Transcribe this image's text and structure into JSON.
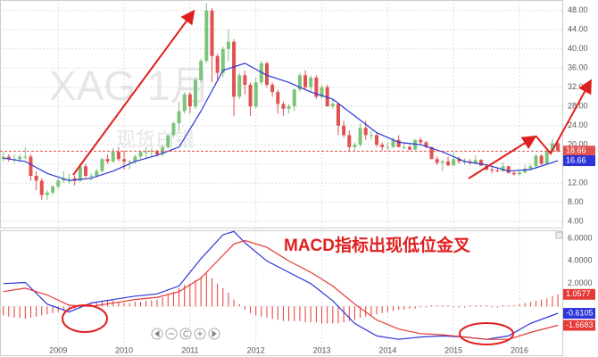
{
  "chart_data": [
    {
      "type": "candlestick",
      "annotations": [
        "XAG 1月",
        "现货白银"
      ],
      "up_color": "#7cc47c",
      "down_color": "#e0524f",
      "ohlc": [
        [
          17.0,
          18.5,
          16.5,
          17.5
        ],
        [
          17.5,
          18.0,
          16.5,
          17.0
        ],
        [
          17.0,
          18.0,
          16.2,
          17.0
        ],
        [
          17.0,
          18.0,
          16.3,
          17.5
        ],
        [
          17.5,
          19.5,
          17.0,
          17.5
        ],
        [
          17.5,
          18.0,
          12.5,
          13.5
        ],
        [
          13.5,
          14.5,
          10.5,
          12.5
        ],
        [
          12.5,
          13.0,
          8.5,
          9.5
        ],
        [
          9.5,
          10.5,
          8.5,
          10.0
        ],
        [
          10.0,
          11.5,
          9.5,
          11.3
        ],
        [
          11.3,
          13.0,
          10.8,
          12.5
        ],
        [
          12.5,
          14.5,
          12.0,
          13.0
        ],
        [
          13.0,
          14.0,
          11.8,
          13.0
        ],
        [
          13.0,
          13.5,
          11.5,
          12.5
        ],
        [
          12.5,
          15.8,
          12.2,
          15.5
        ],
        [
          15.5,
          16.0,
          13.2,
          13.5
        ],
        [
          13.5,
          14.0,
          12.5,
          13.5
        ],
        [
          13.5,
          15.0,
          13.2,
          14.5
        ],
        [
          14.5,
          17.3,
          14.2,
          17.0
        ],
        [
          17.0,
          18.0,
          16.0,
          16.5
        ],
        [
          16.5,
          19.3,
          16.2,
          18.5
        ],
        [
          18.5,
          19.5,
          16.5,
          17.0
        ],
        [
          17.0,
          18.8,
          14.8,
          16.5
        ],
        [
          16.5,
          16.8,
          14.8,
          16.5
        ],
        [
          16.5,
          18.0,
          16.0,
          17.5
        ],
        [
          17.5,
          18.8,
          17.0,
          18.5
        ],
        [
          18.5,
          19.6,
          17.0,
          18.5
        ],
        [
          18.5,
          19.3,
          17.5,
          18.7
        ],
        [
          18.7,
          19.0,
          17.5,
          18.0
        ],
        [
          18.0,
          19.8,
          17.5,
          19.5
        ],
        [
          19.5,
          22.0,
          19.2,
          22.0
        ],
        [
          22.0,
          24.8,
          21.5,
          24.5
        ],
        [
          24.5,
          29.0,
          22.8,
          27.0
        ],
        [
          27.0,
          31.0,
          26.5,
          30.5
        ],
        [
          30.5,
          31.0,
          26.5,
          28.0
        ],
        [
          28.0,
          34.0,
          27.5,
          33.5
        ],
        [
          33.5,
          38.0,
          33.0,
          37.5
        ],
        [
          37.5,
          49.5,
          37.0,
          48.0
        ],
        [
          48.0,
          48.5,
          33.0,
          38.5
        ],
        [
          38.5,
          39.0,
          33.5,
          35.0
        ],
        [
          35.0,
          40.5,
          34.0,
          40.0
        ],
        [
          40.0,
          44.0,
          37.5,
          41.5
        ],
        [
          41.5,
          42.0,
          26.0,
          30.0
        ],
        [
          30.0,
          35.0,
          29.5,
          34.5
        ],
        [
          34.5,
          35.5,
          30.5,
          32.5
        ],
        [
          32.5,
          33.0,
          26.0,
          28.0
        ],
        [
          28.0,
          34.0,
          27.5,
          33.0
        ],
        [
          33.0,
          37.5,
          32.5,
          37.0
        ],
        [
          37.0,
          37.3,
          32.0,
          32.5
        ],
        [
          32.5,
          33.0,
          30.0,
          31.0
        ],
        [
          31.0,
          31.5,
          26.5,
          28.5
        ],
        [
          28.5,
          29.0,
          26.0,
          27.5
        ],
        [
          27.5,
          28.5,
          26.5,
          28.0
        ],
        [
          28.0,
          31.8,
          27.0,
          31.5
        ],
        [
          31.5,
          35.0,
          31.0,
          34.5
        ],
        [
          34.5,
          35.5,
          31.5,
          32.0
        ],
        [
          32.0,
          34.5,
          31.0,
          34.0
        ],
        [
          34.0,
          34.5,
          29.5,
          30.0
        ],
        [
          30.0,
          32.5,
          29.5,
          32.0
        ],
        [
          32.0,
          32.5,
          28.0,
          28.0
        ],
        [
          28.0,
          29.5,
          27.5,
          28.5
        ],
        [
          28.5,
          28.8,
          22.0,
          24.0
        ],
        [
          24.0,
          25.0,
          21.5,
          22.0
        ],
        [
          22.0,
          23.0,
          18.5,
          19.5
        ],
        [
          19.5,
          20.5,
          18.7,
          20.0
        ],
        [
          20.0,
          24.5,
          19.5,
          23.5
        ],
        [
          23.5,
          25.0,
          21.0,
          22.0
        ],
        [
          22.0,
          23.0,
          21.0,
          22.0
        ],
        [
          22.0,
          22.5,
          19.5,
          20.0
        ],
        [
          20.0,
          20.5,
          18.8,
          19.5
        ],
        [
          19.5,
          20.5,
          18.8,
          19.5
        ],
        [
          19.5,
          21.5,
          19.3,
          21.0
        ],
        [
          21.0,
          22.0,
          19.5,
          19.5
        ],
        [
          19.5,
          20.5,
          19.0,
          19.5
        ],
        [
          19.5,
          20.0,
          18.8,
          19.0
        ],
        [
          19.0,
          21.2,
          18.8,
          21.0
        ],
        [
          21.0,
          21.5,
          20.0,
          20.5
        ],
        [
          20.5,
          20.8,
          19.3,
          19.5
        ],
        [
          19.5,
          19.6,
          17.0,
          17.0
        ],
        [
          17.0,
          17.5,
          15.8,
          16.2
        ],
        [
          16.2,
          16.8,
          14.5,
          16.5
        ],
        [
          16.5,
          17.5,
          15.5,
          15.7
        ],
        [
          15.7,
          18.5,
          15.5,
          17.0
        ],
        [
          17.0,
          17.5,
          16.0,
          16.5
        ],
        [
          16.5,
          17.2,
          15.8,
          16.5
        ],
        [
          16.5,
          17.0,
          15.8,
          16.2
        ],
        [
          16.2,
          17.8,
          15.8,
          16.8
        ],
        [
          16.8,
          17.0,
          15.6,
          15.6
        ],
        [
          15.6,
          15.8,
          14.6,
          14.8
        ],
        [
          14.8,
          15.5,
          14.0,
          14.6
        ],
        [
          14.6,
          15.3,
          14.3,
          14.5
        ],
        [
          14.5,
          16.3,
          14.3,
          15.5
        ],
        [
          15.5,
          15.6,
          14.0,
          14.1
        ],
        [
          14.1,
          14.4,
          13.6,
          13.8
        ],
        [
          13.8,
          14.5,
          13.6,
          14.2
        ],
        [
          14.2,
          15.8,
          14.0,
          15.0
        ],
        [
          15.0,
          16.0,
          14.8,
          15.5
        ],
        [
          15.5,
          18.0,
          15.0,
          17.7
        ],
        [
          17.7,
          18.0,
          15.8,
          16.0
        ],
        [
          16.0,
          18.8,
          16.0,
          18.7
        ],
        [
          18.7,
          21.2,
          18.5,
          20.3
        ],
        [
          20.3,
          20.8,
          18.4,
          18.66
        ]
      ],
      "ma": {
        "color": "#2c35d8",
        "x": [
          0,
          4,
          8,
          12,
          16,
          20,
          24,
          28,
          32,
          36,
          40,
          44,
          48,
          52,
          56,
          60,
          64,
          68,
          72,
          76,
          80,
          84,
          88,
          92,
          96,
          101
        ],
        "values": [
          17.2,
          16.5,
          14,
          12.5,
          13,
          14.5,
          16.5,
          17.8,
          19.5,
          27,
          35.5,
          37,
          34.5,
          33,
          31,
          29.5,
          26,
          22.5,
          20.5,
          20,
          18.5,
          16.5,
          15.8,
          14.5,
          14.8,
          16.66
        ]
      },
      "xlim": [
        -0.6,
        101.8
      ],
      "ylim": [
        2.7,
        50.2
      ],
      "yticks": [
        {
          "value": 4,
          "label": "4.00"
        },
        {
          "value": 8,
          "label": "8.00"
        },
        {
          "value": 12,
          "label": "12.00"
        },
        {
          "value": 16,
          "label": "16.00"
        },
        {
          "value": 20,
          "label": "20.00"
        },
        {
          "value": 24,
          "label": "24.00"
        },
        {
          "value": 28,
          "label": "28.00"
        },
        {
          "value": 32,
          "label": "32.00"
        },
        {
          "value": 36,
          "label": "36.00"
        },
        {
          "value": 40,
          "label": "40.00"
        },
        {
          "value": 44,
          "label": "44.00"
        },
        {
          "value": 48,
          "label": "48.00"
        }
      ],
      "grid": true
    },
    {
      "type": "macd",
      "annotation": "MACD指标出现低位金叉",
      "series": [
        {
          "color": "#2c35d8",
          "x": [
            0,
            4,
            8,
            12,
            16,
            20,
            24,
            28,
            32,
            36,
            40,
            42,
            44,
            48,
            52,
            56,
            60,
            64,
            68,
            72,
            76,
            80,
            84,
            88,
            92,
            96,
            101
          ],
          "values": [
            2.0,
            2.1,
            0.2,
            -0.5,
            0.3,
            0.6,
            0.9,
            1.1,
            1.8,
            4.2,
            6.3,
            6.6,
            5.6,
            4.0,
            3.0,
            2.0,
            0.5,
            -1.5,
            -2.6,
            -2.9,
            -2.7,
            -2.6,
            -2.7,
            -2.9,
            -2.6,
            -1.5,
            -0.6105
          ]
        },
        {
          "color": "#e53935",
          "x": [
            0,
            4,
            8,
            12,
            16,
            20,
            24,
            28,
            32,
            36,
            40,
            42,
            44,
            48,
            52,
            56,
            60,
            64,
            68,
            72,
            76,
            80,
            84,
            88,
            92,
            96,
            101
          ],
          "values": [
            1.3,
            1.6,
            1.0,
            0.1,
            0.0,
            0.3,
            0.6,
            0.8,
            1.3,
            2.5,
            4.5,
            5.5,
            5.8,
            5.2,
            4.0,
            3.0,
            1.8,
            0.2,
            -1.2,
            -2.0,
            -2.4,
            -2.5,
            -2.7,
            -2.9,
            -2.9,
            -2.3,
            -1.6683
          ]
        }
      ],
      "histogram": {
        "up_color": "#e53935",
        "down_color": "#e53935",
        "values": [
          -0.8,
          -0.9,
          -1.0,
          -1.0,
          -1.1,
          -1.0,
          -0.9,
          -0.8,
          -0.7,
          -0.6,
          -0.5,
          -0.4,
          -0.3,
          -0.2,
          -0.1,
          0.1,
          0.2,
          0.3,
          0.4,
          0.5,
          0.5,
          0.4,
          0.3,
          0.3,
          0.4,
          0.4,
          0.5,
          0.5,
          0.6,
          0.8,
          1.0,
          1.3,
          1.6,
          1.9,
          2.0,
          2.3,
          2.6,
          2.9,
          2.5,
          2.0,
          1.6,
          1.2,
          0.6,
          0.2,
          -0.3,
          -0.6,
          -0.8,
          -0.9,
          -1.0,
          -1.1,
          -1.2,
          -1.3,
          -1.3,
          -1.3,
          -1.3,
          -1.4,
          -1.4,
          -1.4,
          -1.5,
          -1.5,
          -1.5,
          -1.5,
          -1.4,
          -1.3,
          -1.2,
          -1.0,
          -0.9,
          -0.8,
          -0.7,
          -0.6,
          -0.5,
          -0.4,
          -0.3,
          -0.3,
          -0.2,
          -0.2,
          -0.1,
          -0.1,
          0.1,
          0.1,
          0.1,
          0.1,
          -0.1,
          -0.1,
          -0.1,
          0.1,
          0.1,
          0.1,
          0.1,
          -0.1,
          -0.1,
          0.1,
          0.1,
          0.1,
          0.2,
          0.3,
          0.4,
          0.5,
          0.6,
          0.7,
          0.9,
          1.0577
        ]
      },
      "xlim": [
        -0.6,
        101.8
      ],
      "ylim": [
        -4.3,
        6.7
      ],
      "yticks": [
        {
          "value": 6,
          "label": "6.0000"
        },
        {
          "value": 4,
          "label": "4.0000"
        },
        {
          "value": 2,
          "label": "2.0000"
        }
      ],
      "xticks": [
        {
          "value": 10,
          "label": "2009"
        },
        {
          "value": 22,
          "label": "2010"
        },
        {
          "value": 34,
          "label": "2011"
        },
        {
          "value": 46,
          "label": "2012"
        },
        {
          "value": 58,
          "label": "2013"
        },
        {
          "value": 70,
          "label": "2014"
        },
        {
          "value": 82,
          "label": "2015"
        },
        {
          "value": 94,
          "label": "2016"
        }
      ],
      "grid": true
    }
  ]
}
